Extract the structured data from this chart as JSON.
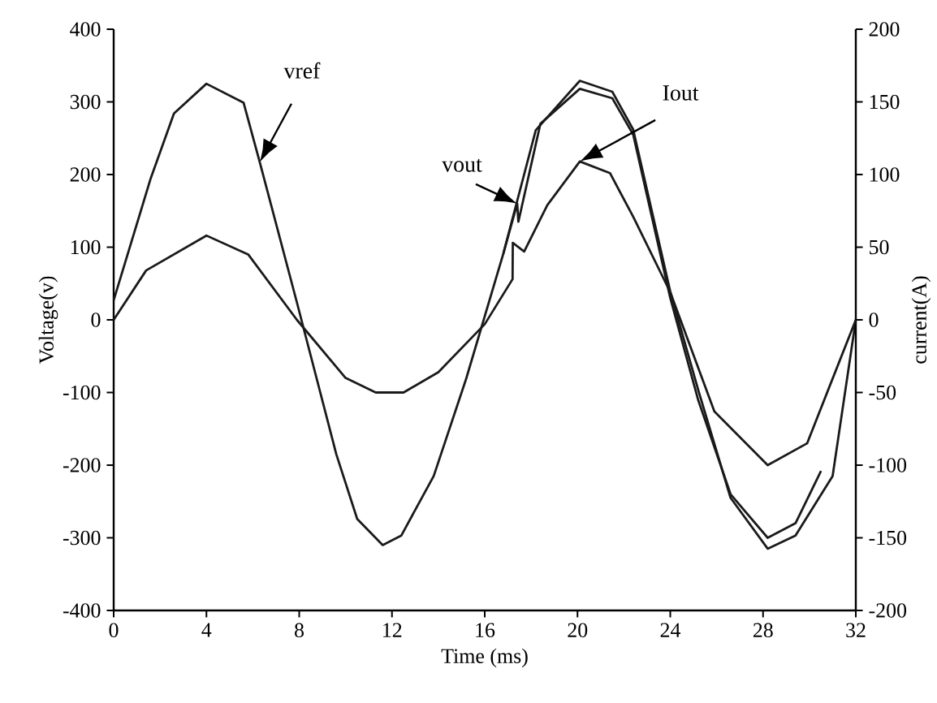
{
  "chart_data": {
    "type": "line",
    "xlabel": "Time (ms)",
    "ylabel": "Voltage(v)",
    "y2label": "current(A)",
    "xlim": [
      0,
      32
    ],
    "xticks": [
      0,
      4,
      8,
      12,
      16,
      20,
      24,
      28,
      32
    ],
    "ylim": [
      -400,
      400
    ],
    "yticks": [
      -400,
      -300,
      -200,
      -100,
      0,
      100,
      200,
      300,
      400
    ],
    "y2lim": [
      -200,
      200
    ],
    "y2ticks": [
      -200,
      -150,
      -100,
      -50,
      0,
      50,
      100,
      150,
      200
    ],
    "marker": "none",
    "line_style": "solid",
    "series": [
      {
        "name": "vref",
        "color": "#1a1a1a",
        "x": [
          0,
          1.6,
          2.6,
          4.0,
          5.6,
          6.3,
          7.9,
          9.6,
          10.5,
          11.6,
          12.4,
          13.8,
          15.2,
          16.8,
          18.2,
          20.1,
          21.5,
          22.4,
          24.0,
          25.2,
          26.6,
          28.2,
          29.4,
          31.0,
          32.0
        ],
        "values": [
          27,
          195,
          284,
          325,
          299,
          217,
          24,
          -185,
          -274,
          -310,
          -297,
          -215,
          -81,
          91,
          261,
          329,
          314,
          262,
          39,
          -96,
          -245,
          -315,
          -297,
          -215,
          0
        ]
      },
      {
        "name": "vout",
        "color": "#1a1a1a",
        "x": [
          16.8,
          17.4,
          17.45,
          18.4,
          20.1,
          21.5,
          22.4,
          24.0,
          25.2,
          26.6,
          28.2,
          29.4,
          30.5
        ],
        "values": [
          91,
          160,
          135,
          270,
          318,
          305,
          255,
          30,
          -110,
          -240,
          -300,
          -280,
          -208
        ]
      },
      {
        "name": "Iout",
        "color": "#1a1a1a",
        "axis": "y2",
        "x": [
          0,
          1.4,
          4.0,
          5.8,
          7.9,
          10.0,
          11.3,
          12.5,
          14.0,
          16.0,
          17.2,
          17.21,
          17.7,
          18.7,
          20.1,
          21.4,
          22.4,
          24.0,
          25.9,
          28.2,
          29.9,
          32.0
        ],
        "values": [
          0,
          34,
          58,
          45,
          0,
          -40,
          -50,
          -50,
          -36,
          -3,
          28,
          53,
          47,
          79,
          109,
          101,
          71,
          19,
          -63,
          -100,
          -85,
          0
        ]
      }
    ]
  }
}
